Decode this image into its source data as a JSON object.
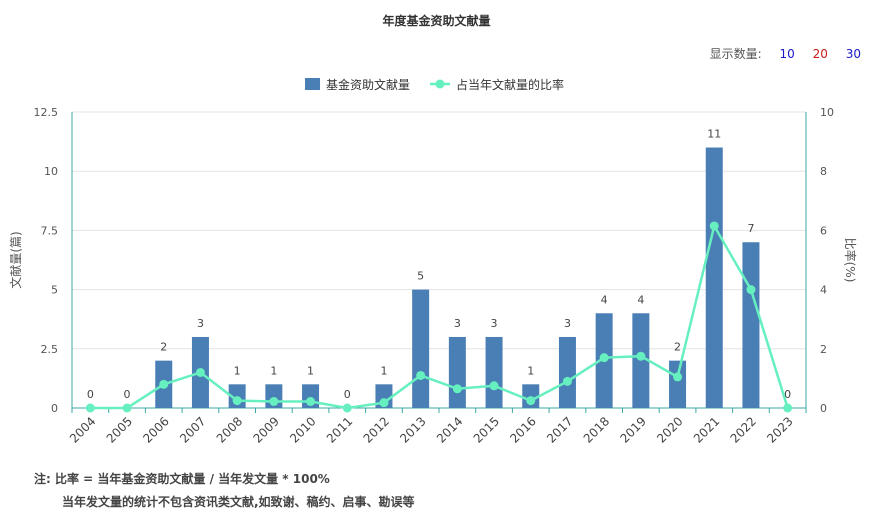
{
  "title": "年度基金资助文献量",
  "count_selector": {
    "label": "显示数量:",
    "options": [
      {
        "text": "10",
        "color": "#1a1acc"
      },
      {
        "text": "20",
        "color": "#cc1a1a"
      },
      {
        "text": "30",
        "color": "#1a1acc"
      }
    ]
  },
  "notes": {
    "line1": "注:  比率 = 当年基金资助文献量 / 当年发文量 * 100%",
    "line2": "当年发文量的统计不包含资讯类文献,如致谢、稿约、启事、勘误等"
  },
  "chart_data": {
    "type": "bar",
    "categories": [
      "2004",
      "2005",
      "2006",
      "2007",
      "2008",
      "2009",
      "2010",
      "2011",
      "2012",
      "2013",
      "2014",
      "2015",
      "2016",
      "2017",
      "2018",
      "2019",
      "2020",
      "2021",
      "2022",
      "2023"
    ],
    "series": [
      {
        "name": "基金资助文献量",
        "type": "bar",
        "axis": "left",
        "color": "#4a7fb5",
        "values": [
          0,
          0,
          2,
          3,
          1,
          1,
          1,
          0,
          1,
          5,
          3,
          3,
          1,
          3,
          4,
          4,
          2,
          11,
          7,
          0
        ]
      },
      {
        "name": "占当年文献量的比率",
        "type": "line",
        "axis": "right",
        "color": "#66f0bf",
        "values": [
          0,
          0,
          0.8,
          1.2,
          0.25,
          0.22,
          0.22,
          0,
          0.18,
          1.1,
          0.65,
          0.75,
          0.25,
          0.9,
          1.7,
          1.75,
          1.05,
          6.15,
          4.0,
          0
        ]
      }
    ],
    "ylabel": "文献量(篇)",
    "y2label": "比率(%)",
    "ylim": [
      0,
      12.5
    ],
    "y2lim": [
      0,
      10
    ],
    "yticks": [
      "0",
      "2.5",
      "5",
      "7.5",
      "10",
      "12.5"
    ],
    "y2ticks": [
      "0",
      "2",
      "4",
      "6",
      "8",
      "10"
    ],
    "legend_position": "top-center",
    "grid": true
  }
}
